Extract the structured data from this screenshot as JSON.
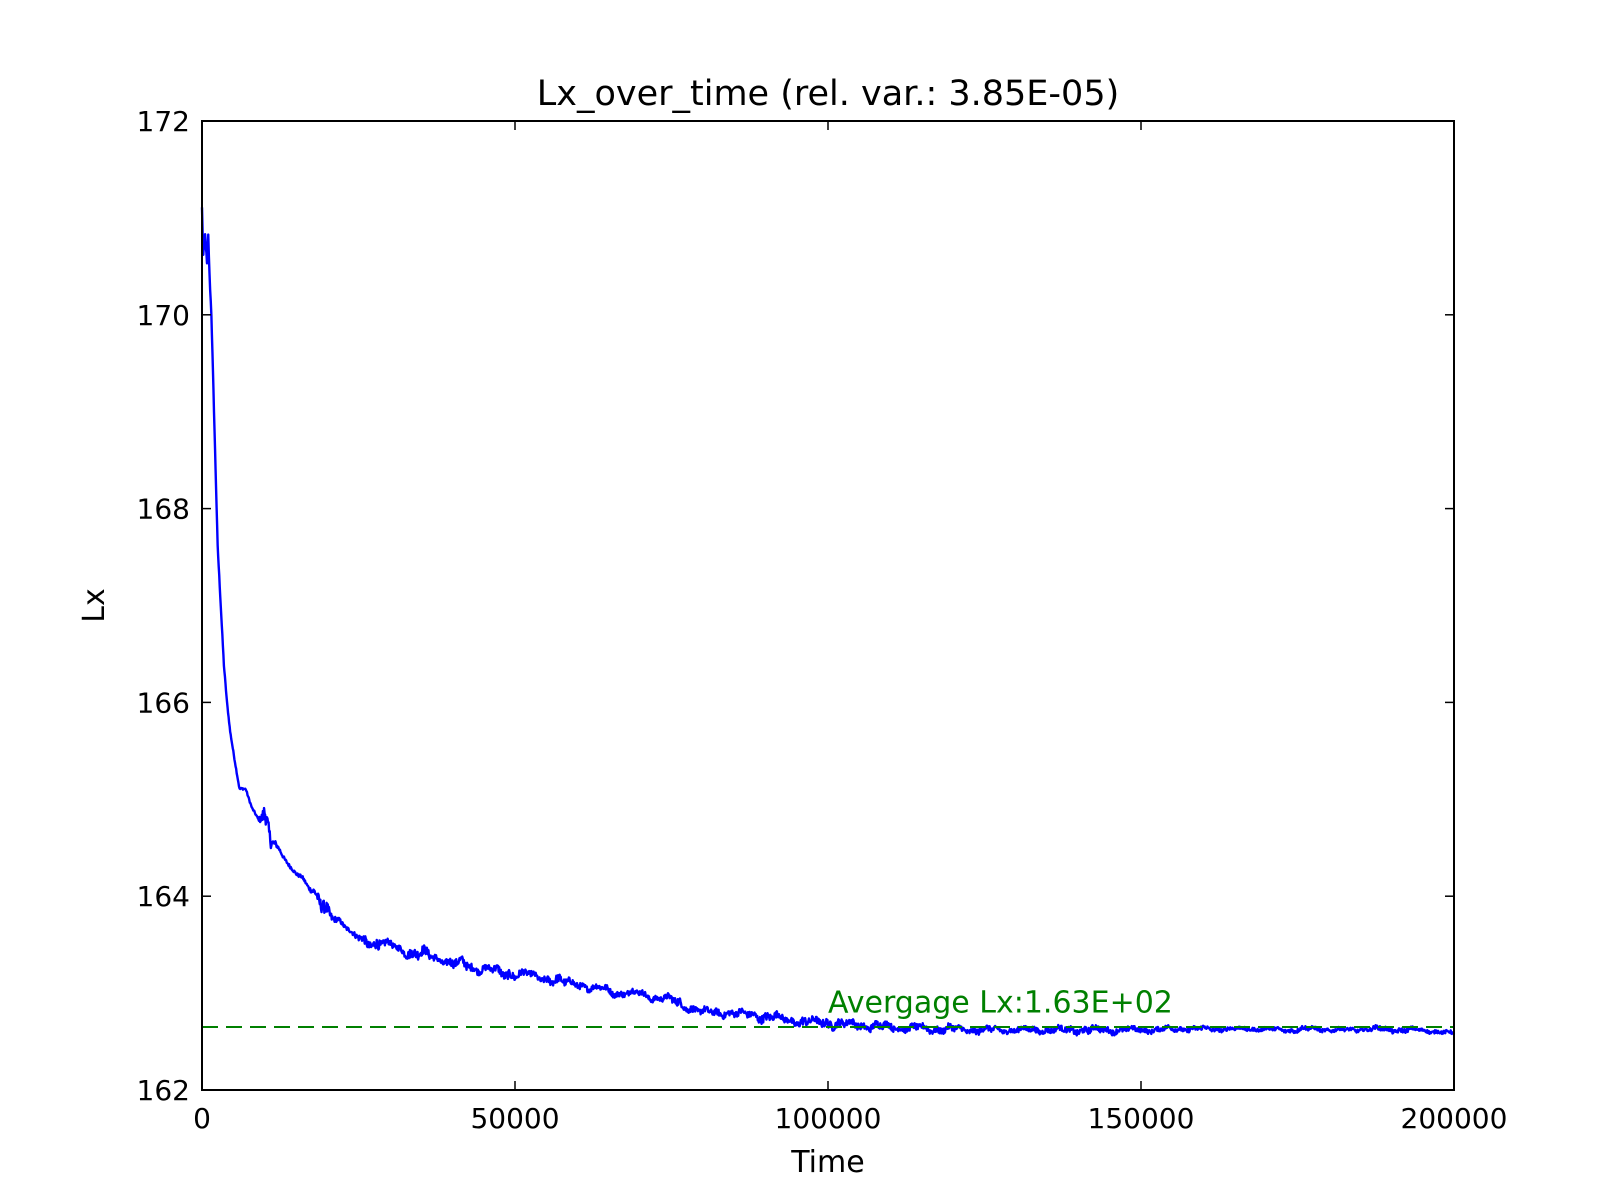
{
  "chart_data": {
    "type": "line",
    "title": "Lx_over_time (rel. var.: 3.85E-05)",
    "xlabel": "Time",
    "ylabel": "Lx",
    "xlim": [
      0,
      200000
    ],
    "ylim": [
      162,
      172
    ],
    "xticks": [
      0,
      50000,
      100000,
      150000,
      200000
    ],
    "xtick_labels": [
      "0",
      "50000",
      "100000",
      "150000",
      "200000"
    ],
    "yticks": [
      162,
      164,
      166,
      168,
      170,
      172
    ],
    "ytick_labels": [
      "162",
      "164",
      "166",
      "168",
      "170",
      "172"
    ],
    "grid": false,
    "colors": {
      "series": "#0000ff",
      "average": "#008000",
      "axes": "#000000"
    },
    "series": [
      {
        "x": [
          0,
          200,
          500,
          800,
          1000,
          1200,
          1500,
          2000,
          2500,
          3000,
          3500,
          4000,
          4500,
          5000,
          6000,
          7000,
          8000,
          9000,
          10000,
          11000,
          12000,
          13000,
          14000,
          15000,
          16000,
          17000,
          18000,
          19000,
          20000,
          21000,
          22000,
          24000,
          26000,
          28000,
          30000,
          32000,
          34000,
          36000,
          38000,
          40000,
          42000,
          44000,
          46000,
          48000,
          50000,
          52000,
          54000,
          56000,
          58000,
          60000,
          62000,
          64000,
          66000,
          68000,
          70000,
          72000,
          74000,
          76000,
          78000,
          80000,
          82000,
          84000,
          86000,
          88000,
          90000,
          92000,
          94000,
          96000,
          98000,
          100000,
          102000,
          104000,
          106000,
          108000,
          110000,
          112000,
          114000,
          116000,
          118000,
          120000,
          122000,
          124000,
          126000,
          128000,
          130000,
          132000,
          134000,
          136000,
          138000,
          140000,
          142000,
          144000,
          146000,
          148000,
          150000,
          152000,
          154000,
          156000,
          158000,
          160000,
          162000,
          164000,
          166000,
          168000,
          170000,
          172000,
          174000,
          176000,
          178000,
          180000,
          182000,
          184000,
          186000,
          188000,
          190000,
          192000,
          194000,
          196000,
          198000,
          200000
        ],
        "y": [
          171.1,
          170.6,
          170.8,
          170.5,
          170.8,
          170.4,
          170.0,
          168.8,
          167.6,
          167.0,
          166.4,
          166.0,
          165.7,
          165.5,
          165.1,
          165.1,
          164.9,
          164.8,
          164.9,
          164.6,
          164.5,
          164.4,
          164.3,
          164.25,
          164.2,
          164.1,
          164.0,
          163.9,
          163.85,
          163.8,
          163.75,
          163.6,
          163.55,
          163.5,
          163.5,
          163.45,
          163.4,
          163.4,
          163.35,
          163.3,
          163.3,
          163.25,
          163.25,
          163.2,
          163.2,
          163.2,
          163.15,
          163.15,
          163.1,
          163.1,
          163.05,
          163.05,
          163.0,
          163.0,
          163.0,
          162.95,
          162.95,
          162.9,
          162.85,
          162.8,
          162.8,
          162.8,
          162.78,
          162.78,
          162.75,
          162.75,
          162.72,
          162.7,
          162.7,
          162.7,
          162.68,
          162.68,
          162.66,
          162.66,
          162.65,
          162.64,
          162.64,
          162.63,
          162.63,
          162.63,
          162.62,
          162.62,
          162.62,
          162.62,
          162.62,
          162.62,
          162.62,
          162.62,
          162.62,
          162.62,
          162.62,
          162.62,
          162.62,
          162.62,
          162.62,
          162.62,
          162.63,
          162.63,
          162.63,
          162.63,
          162.63,
          162.63,
          162.63,
          162.63,
          162.63,
          162.62,
          162.62,
          162.63,
          162.63,
          162.62,
          162.62,
          162.62,
          162.63,
          162.63,
          162.62,
          162.62,
          162.62,
          162.61,
          162.6,
          162.58
        ],
        "noise": [
          0.05,
          0.05,
          0.05,
          0.05,
          0.05,
          0.05,
          0.04,
          0.03,
          0.03,
          0.03,
          0.03,
          0.02,
          0.02,
          0.02,
          0.02,
          0.02,
          0.02,
          0.02,
          0.18,
          0.12,
          0.04,
          0.03,
          0.03,
          0.03,
          0.03,
          0.03,
          0.08,
          0.12,
          0.12,
          0.06,
          0.04,
          0.04,
          0.08,
          0.1,
          0.05,
          0.06,
          0.1,
          0.08,
          0.05,
          0.08,
          0.08,
          0.06,
          0.06,
          0.08,
          0.08,
          0.05,
          0.05,
          0.08,
          0.07,
          0.06,
          0.05,
          0.06,
          0.05,
          0.06,
          0.05,
          0.05,
          0.05,
          0.08,
          0.06,
          0.06,
          0.06,
          0.06,
          0.06,
          0.06,
          0.08,
          0.06,
          0.06,
          0.08,
          0.06,
          0.08,
          0.07,
          0.06,
          0.06,
          0.07,
          0.06,
          0.05,
          0.06,
          0.06,
          0.06,
          0.06,
          0.05,
          0.06,
          0.05,
          0.05,
          0.05,
          0.05,
          0.05,
          0.05,
          0.05,
          0.06,
          0.06,
          0.05,
          0.05,
          0.05,
          0.04,
          0.04,
          0.04,
          0.04,
          0.04,
          0.04,
          0.04,
          0.03,
          0.03,
          0.03,
          0.03,
          0.03,
          0.04,
          0.04,
          0.03,
          0.03,
          0.03,
          0.03,
          0.03,
          0.04,
          0.04,
          0.04,
          0.03,
          0.03,
          0.03,
          0.03
        ]
      }
    ],
    "average": {
      "value": 162.65,
      "label": "Avergage Lx:1.63E+02",
      "label_x": 100000,
      "label_y": 162.8
    }
  }
}
